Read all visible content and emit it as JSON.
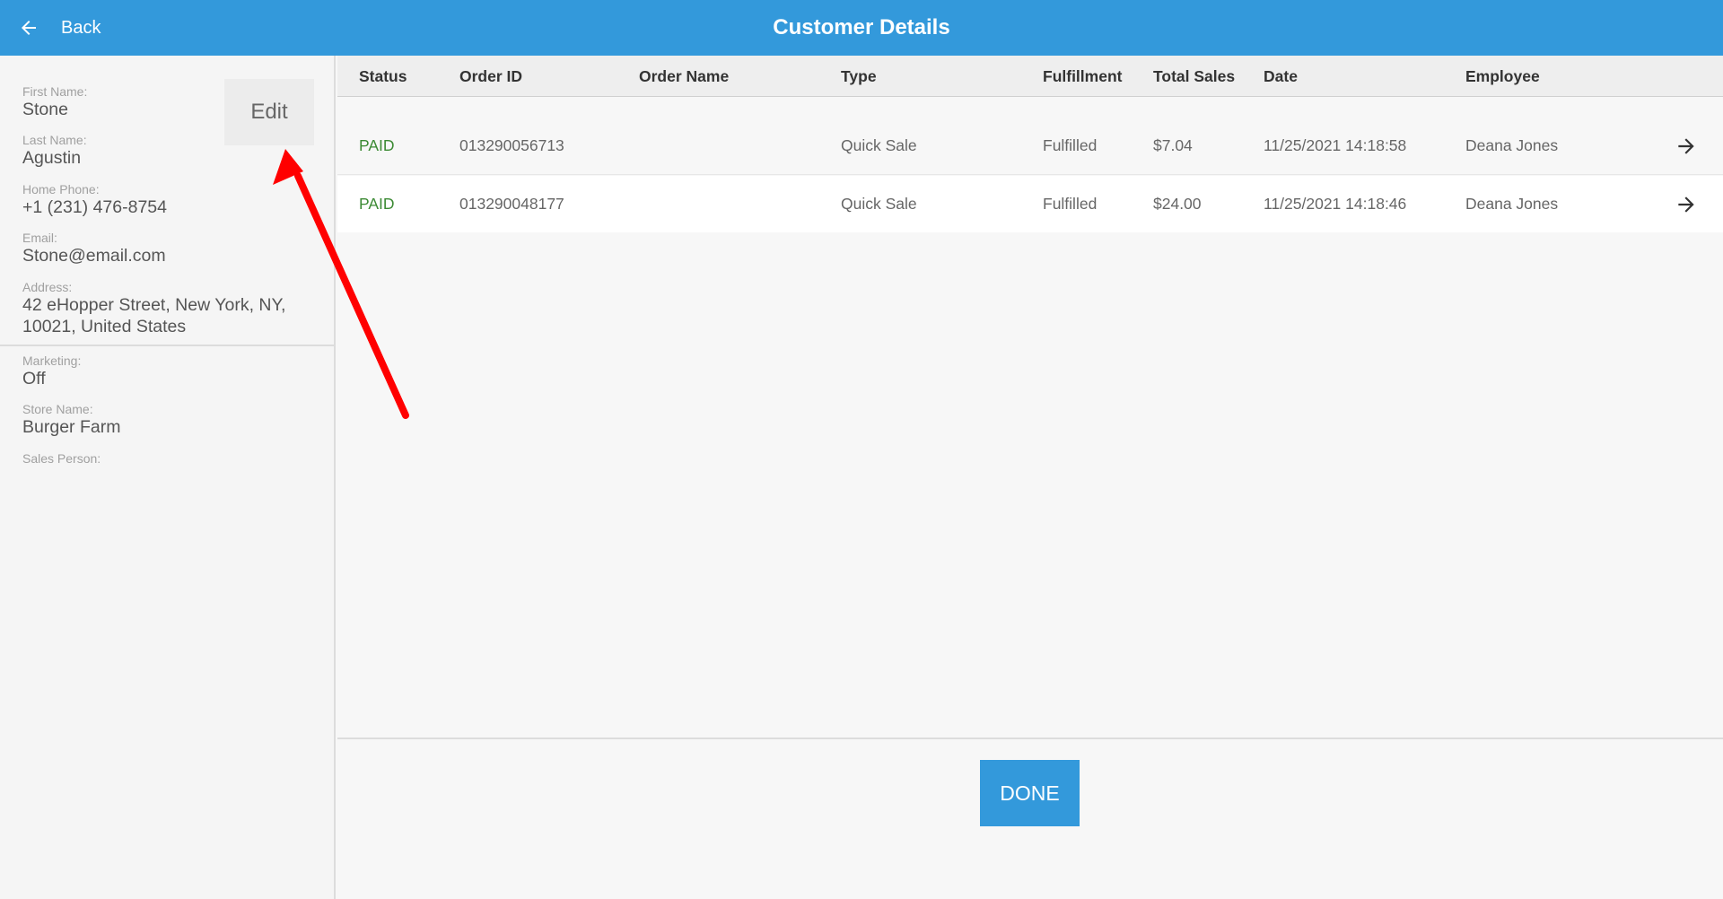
{
  "header": {
    "back_label": "Back",
    "title": "Customer Details",
    "icon": "arrow-left-icon"
  },
  "customer": {
    "first_name_label": "First Name:",
    "first_name": "Stone",
    "last_name_label": "Last Name:",
    "last_name": "Agustin",
    "home_phone_label": "Home Phone:",
    "home_phone": "+1 (231) 476-8754",
    "email_label": "Email:",
    "email": "Stone@email.com",
    "address_label": "Address:",
    "address_line1": "42 eHopper Street, New York, NY,",
    "address_line2": "10021, United States",
    "marketing_label": "Marketing:",
    "marketing": "Off",
    "store_name_label": "Store Name:",
    "store_name": "Burger Farm",
    "sales_person_label": "Sales Person:",
    "edit_label": "Edit"
  },
  "orders": {
    "columns": [
      "Status",
      "Order ID",
      "Order Name",
      "Type",
      "Fulfillment",
      "Total Sales",
      "Date",
      "Employee"
    ],
    "rows": [
      {
        "status": "PAID",
        "order_id": "013290056713",
        "order_name": "",
        "type": "Quick Sale",
        "fulfillment": "Fulfilled",
        "total": "$7.04",
        "date": "11/25/2021 14:18:58",
        "employee": "Deana Jones",
        "icon": "arrow-right-icon"
      },
      {
        "status": "PAID",
        "order_id": "013290048177",
        "order_name": "",
        "type": "Quick Sale",
        "fulfillment": "Fulfilled",
        "total": "$24.00",
        "date": "11/25/2021 14:18:46",
        "employee": "Deana Jones",
        "icon": "arrow-right-icon"
      }
    ]
  },
  "footer": {
    "done_label": "DONE"
  },
  "colors": {
    "header_bg": "#3399db",
    "status_paid": "#3c8a34",
    "annotation_arrow": "#ff0000"
  }
}
